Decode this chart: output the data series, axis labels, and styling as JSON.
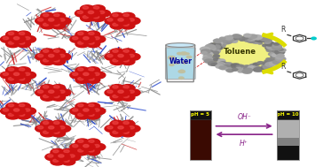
{
  "fig_width": 3.73,
  "fig_height": 1.89,
  "dpi": 100,
  "bg_color": "#ffffff",
  "water_color": "#add8e6",
  "toluene_color": "#f0f080",
  "sphere_gray_color": "#909090",
  "red_sphere_color": "#cc1111",
  "red_sphere_highlight": "#ee4444",
  "bottle1_liquid_color": "#3a0a02",
  "bottle2_top_color": "#b0b0b0",
  "bottle2_mid_color": "#888888",
  "bottle2_bot_color": "#111111",
  "bottle_cap_color": "#111111",
  "arrow_color": "#882288",
  "yellow_arrow_color": "#dddd00",
  "toluene_label": "Toluene",
  "water_label": "Water",
  "oh_label": "OH⁻",
  "h_label": "H⁺",
  "ph5_label": "pH = 5",
  "ph10_label": "pH = 10",
  "R_label": "R"
}
